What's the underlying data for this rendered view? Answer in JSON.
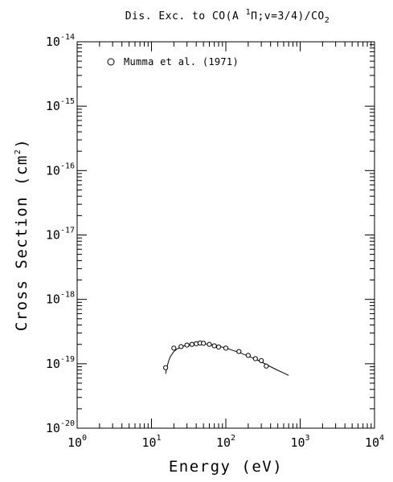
{
  "chart_data": {
    "type": "scatter",
    "title": {
      "prefix": "Dis. Exc. to CO(A ",
      "sup": "1",
      "greek": "Π",
      "middle": ";v=3/4)/CO",
      "sub": "2"
    },
    "xlabel": "Energy (eV)",
    "ylabel": {
      "text": "Cross Section (cm",
      "sup": "2",
      "suffix": ")"
    },
    "xscale": "log",
    "yscale": "log",
    "xlim": [
      1,
      10000
    ],
    "ylim": [
      1e-20,
      1e-14
    ],
    "x_ticks": [
      {
        "base": "10",
        "exp": "0",
        "value": 1
      },
      {
        "base": "10",
        "exp": "1",
        "value": 10
      },
      {
        "base": "10",
        "exp": "2",
        "value": 100
      },
      {
        "base": "10",
        "exp": "3",
        "value": 1000
      },
      {
        "base": "10",
        "exp": "4",
        "value": 10000
      }
    ],
    "y_ticks": [
      {
        "base": "10",
        "exp": "-20",
        "value": 1e-20
      },
      {
        "base": "10",
        "exp": "-19",
        "value": 1e-19
      },
      {
        "base": "10",
        "exp": "-18",
        "value": 1e-18
      },
      {
        "base": "10",
        "exp": "-17",
        "value": 1e-17
      },
      {
        "base": "10",
        "exp": "-16",
        "value": 1e-16
      },
      {
        "base": "10",
        "exp": "-15",
        "value": 1e-15
      },
      {
        "base": "10",
        "exp": "-14",
        "value": 1e-14
      }
    ],
    "legend": {
      "placement": "top-left",
      "marker": "circle"
    },
    "series": [
      {
        "name": "Mumma et al. (1971)",
        "marker": "circle",
        "x": [
          15.5,
          20,
          25,
          30,
          35,
          40,
          45,
          50,
          60,
          70,
          80,
          100,
          150,
          200,
          250,
          300,
          350
        ],
        "y": [
          8.7e-20,
          1.75e-19,
          1.85e-19,
          1.95e-19,
          2e-19,
          2.05e-19,
          2.1e-19,
          2.08e-19,
          2e-19,
          1.9e-19,
          1.82e-19,
          1.75e-19,
          1.55e-19,
          1.35e-19,
          1.2e-19,
          1.12e-19,
          9.2e-20
        ]
      },
      {
        "name": "",
        "style": "line",
        "x": [
          15.5,
          16,
          17,
          18,
          20,
          22,
          25,
          30,
          35,
          40,
          50,
          60,
          70,
          80,
          100,
          150,
          200,
          250,
          300,
          400,
          500,
          600,
          700
        ],
        "y": [
          7e-20,
          8.6e-20,
          1.1e-19,
          1.3e-19,
          1.55e-19,
          1.7e-19,
          1.83e-19,
          1.95e-19,
          2.02e-19,
          2.05e-19,
          2.05e-19,
          2e-19,
          1.94e-19,
          1.87e-19,
          1.76e-19,
          1.5e-19,
          1.32e-19,
          1.18e-19,
          1.07e-19,
          9e-20,
          7.9e-20,
          7.2e-20,
          6.6e-20
        ]
      }
    ]
  }
}
